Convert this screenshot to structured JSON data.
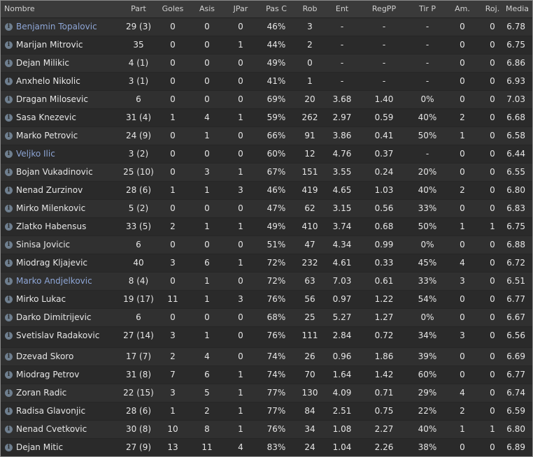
{
  "headers": [
    "Nombre",
    "Part",
    "Goles",
    "Asis",
    "JPar",
    "Pas C",
    "Rob",
    "Ent",
    "RegPP",
    "Tir P",
    "Am.",
    "Roj.",
    "Media"
  ],
  "info_icon": "info-icon",
  "players": [
    {
      "name": "Benjamin Topalovic",
      "loan": true,
      "part": "29 (3)",
      "goles": "0",
      "asis": "0",
      "jpar": "0",
      "pasc": "46%",
      "rob": "3",
      "ent": "-",
      "regpp": "-",
      "tirp": "-",
      "am": "0",
      "roj": "0",
      "media": "6.78"
    },
    {
      "name": "Marijan Mitrovic",
      "loan": false,
      "part": "35",
      "goles": "0",
      "asis": "0",
      "jpar": "1",
      "pasc": "44%",
      "rob": "2",
      "ent": "-",
      "regpp": "-",
      "tirp": "-",
      "am": "0",
      "roj": "0",
      "media": "6.75"
    },
    {
      "name": "Dejan Milikic",
      "loan": false,
      "part": "4 (1)",
      "goles": "0",
      "asis": "0",
      "jpar": "0",
      "pasc": "49%",
      "rob": "0",
      "ent": "-",
      "regpp": "-",
      "tirp": "-",
      "am": "0",
      "roj": "0",
      "media": "6.86"
    },
    {
      "name": "Anxhelo Nikolic",
      "loan": false,
      "part": "3 (1)",
      "goles": "0",
      "asis": "0",
      "jpar": "0",
      "pasc": "41%",
      "rob": "1",
      "ent": "-",
      "regpp": "-",
      "tirp": "-",
      "am": "0",
      "roj": "0",
      "media": "6.93"
    },
    {
      "name": "Dragan Milosevic",
      "loan": false,
      "part": "6",
      "goles": "0",
      "asis": "0",
      "jpar": "0",
      "pasc": "69%",
      "rob": "20",
      "ent": "3.68",
      "regpp": "1.40",
      "tirp": "0%",
      "am": "0",
      "roj": "0",
      "media": "7.03"
    },
    {
      "name": "Sasa Knezevic",
      "loan": false,
      "part": "31 (4)",
      "goles": "1",
      "asis": "4",
      "jpar": "1",
      "pasc": "59%",
      "rob": "262",
      "ent": "2.97",
      "regpp": "0.59",
      "tirp": "40%",
      "am": "2",
      "roj": "0",
      "media": "6.68"
    },
    {
      "name": "Marko Petrovic",
      "loan": false,
      "part": "24 (9)",
      "goles": "0",
      "asis": "1",
      "jpar": "0",
      "pasc": "66%",
      "rob": "91",
      "ent": "3.86",
      "regpp": "0.41",
      "tirp": "50%",
      "am": "1",
      "roj": "0",
      "media": "6.58"
    },
    {
      "name": "Veljko Ilic",
      "loan": true,
      "part": "3 (2)",
      "goles": "0",
      "asis": "0",
      "jpar": "0",
      "pasc": "60%",
      "rob": "12",
      "ent": "4.76",
      "regpp": "0.37",
      "tirp": "-",
      "am": "0",
      "roj": "0",
      "media": "6.44"
    },
    {
      "name": "Bojan Vukadinovic",
      "loan": false,
      "part": "25 (10)",
      "goles": "0",
      "asis": "3",
      "jpar": "1",
      "pasc": "67%",
      "rob": "151",
      "ent": "3.55",
      "regpp": "0.24",
      "tirp": "20%",
      "am": "0",
      "roj": "0",
      "media": "6.55"
    },
    {
      "name": "Nenad Zurzinov",
      "loan": false,
      "part": "28 (6)",
      "goles": "1",
      "asis": "1",
      "jpar": "3",
      "pasc": "46%",
      "rob": "419",
      "ent": "4.65",
      "regpp": "1.03",
      "tirp": "40%",
      "am": "2",
      "roj": "0",
      "media": "6.80"
    },
    {
      "name": "Mirko Milenkovic",
      "loan": false,
      "part": "5 (2)",
      "goles": "0",
      "asis": "0",
      "jpar": "0",
      "pasc": "47%",
      "rob": "62",
      "ent": "3.15",
      "regpp": "0.56",
      "tirp": "33%",
      "am": "0",
      "roj": "0",
      "media": "6.83"
    },
    {
      "name": "Zlatko Habensus",
      "loan": false,
      "part": "33 (5)",
      "goles": "2",
      "asis": "1",
      "jpar": "1",
      "pasc": "49%",
      "rob": "410",
      "ent": "3.74",
      "regpp": "0.68",
      "tirp": "50%",
      "am": "1",
      "roj": "1",
      "media": "6.75"
    },
    {
      "name": "Sinisa Jovicic",
      "loan": false,
      "part": "6",
      "goles": "0",
      "asis": "0",
      "jpar": "0",
      "pasc": "51%",
      "rob": "47",
      "ent": "4.34",
      "regpp": "0.99",
      "tirp": "0%",
      "am": "0",
      "roj": "0",
      "media": "6.88"
    },
    {
      "name": "Miodrag Kljajevic",
      "loan": false,
      "part": "40",
      "goles": "3",
      "asis": "6",
      "jpar": "1",
      "pasc": "72%",
      "rob": "232",
      "ent": "4.61",
      "regpp": "0.33",
      "tirp": "45%",
      "am": "4",
      "roj": "0",
      "media": "6.72"
    },
    {
      "name": "Marko Andjelkovic",
      "loan": true,
      "part": "8 (4)",
      "goles": "0",
      "asis": "1",
      "jpar": "0",
      "pasc": "72%",
      "rob": "63",
      "ent": "7.03",
      "regpp": "0.61",
      "tirp": "33%",
      "am": "3",
      "roj": "0",
      "media": "6.51"
    },
    {
      "name": "Mirko Lukac",
      "loan": false,
      "part": "19 (17)",
      "goles": "11",
      "asis": "1",
      "jpar": "3",
      "pasc": "76%",
      "rob": "56",
      "ent": "0.97",
      "regpp": "1.22",
      "tirp": "54%",
      "am": "0",
      "roj": "0",
      "media": "6.77"
    },
    {
      "name": "Darko Dimitrijevic",
      "loan": false,
      "part": "6",
      "goles": "0",
      "asis": "0",
      "jpar": "0",
      "pasc": "68%",
      "rob": "25",
      "ent": "5.27",
      "regpp": "1.27",
      "tirp": "0%",
      "am": "0",
      "roj": "0",
      "media": "6.67"
    },
    {
      "name": "Svetislav Radakovic",
      "loan": false,
      "part": "27 (14)",
      "goles": "3",
      "asis": "1",
      "jpar": "0",
      "pasc": "76%",
      "rob": "111",
      "ent": "2.84",
      "regpp": "0.72",
      "tirp": "34%",
      "am": "3",
      "roj": "0",
      "media": "6.56"
    },
    {
      "name": "Dzevad Skoro",
      "loan": false,
      "part": "17 (7)",
      "goles": "2",
      "asis": "4",
      "jpar": "0",
      "pasc": "74%",
      "rob": "26",
      "ent": "0.96",
      "regpp": "1.86",
      "tirp": "39%",
      "am": "0",
      "roj": "0",
      "media": "6.69"
    },
    {
      "name": "Miodrag Petrov",
      "loan": false,
      "part": "31 (8)",
      "goles": "7",
      "asis": "6",
      "jpar": "1",
      "pasc": "74%",
      "rob": "70",
      "ent": "1.64",
      "regpp": "1.42",
      "tirp": "60%",
      "am": "0",
      "roj": "0",
      "media": "6.77"
    },
    {
      "name": "Zoran Radic",
      "loan": false,
      "part": "22 (15)",
      "goles": "3",
      "asis": "5",
      "jpar": "1",
      "pasc": "77%",
      "rob": "130",
      "ent": "4.09",
      "regpp": "0.71",
      "tirp": "29%",
      "am": "4",
      "roj": "0",
      "media": "6.74"
    },
    {
      "name": "Radisa Glavonjic",
      "loan": false,
      "part": "28 (6)",
      "goles": "1",
      "asis": "2",
      "jpar": "1",
      "pasc": "77%",
      "rob": "84",
      "ent": "2.51",
      "regpp": "0.75",
      "tirp": "22%",
      "am": "2",
      "roj": "0",
      "media": "6.59"
    },
    {
      "name": "Nenad Cvetkovic",
      "loan": false,
      "part": "30 (8)",
      "goles": "10",
      "asis": "8",
      "jpar": "1",
      "pasc": "76%",
      "rob": "34",
      "ent": "1.08",
      "regpp": "2.27",
      "tirp": "40%",
      "am": "1",
      "roj": "1",
      "media": "6.80"
    },
    {
      "name": "Dejan Mitic",
      "loan": false,
      "part": "27 (9)",
      "goles": "13",
      "asis": "11",
      "jpar": "4",
      "pasc": "83%",
      "rob": "24",
      "ent": "1.04",
      "regpp": "2.26",
      "tirp": "38%",
      "am": "0",
      "roj": "0",
      "media": "6.89"
    }
  ],
  "colors": {
    "loan_name": "#8ea6d6",
    "text": "#e6e6e6",
    "row_odd": "#303030",
    "row_even": "#2a2a2a",
    "header_bg": "#3a3a3a"
  }
}
